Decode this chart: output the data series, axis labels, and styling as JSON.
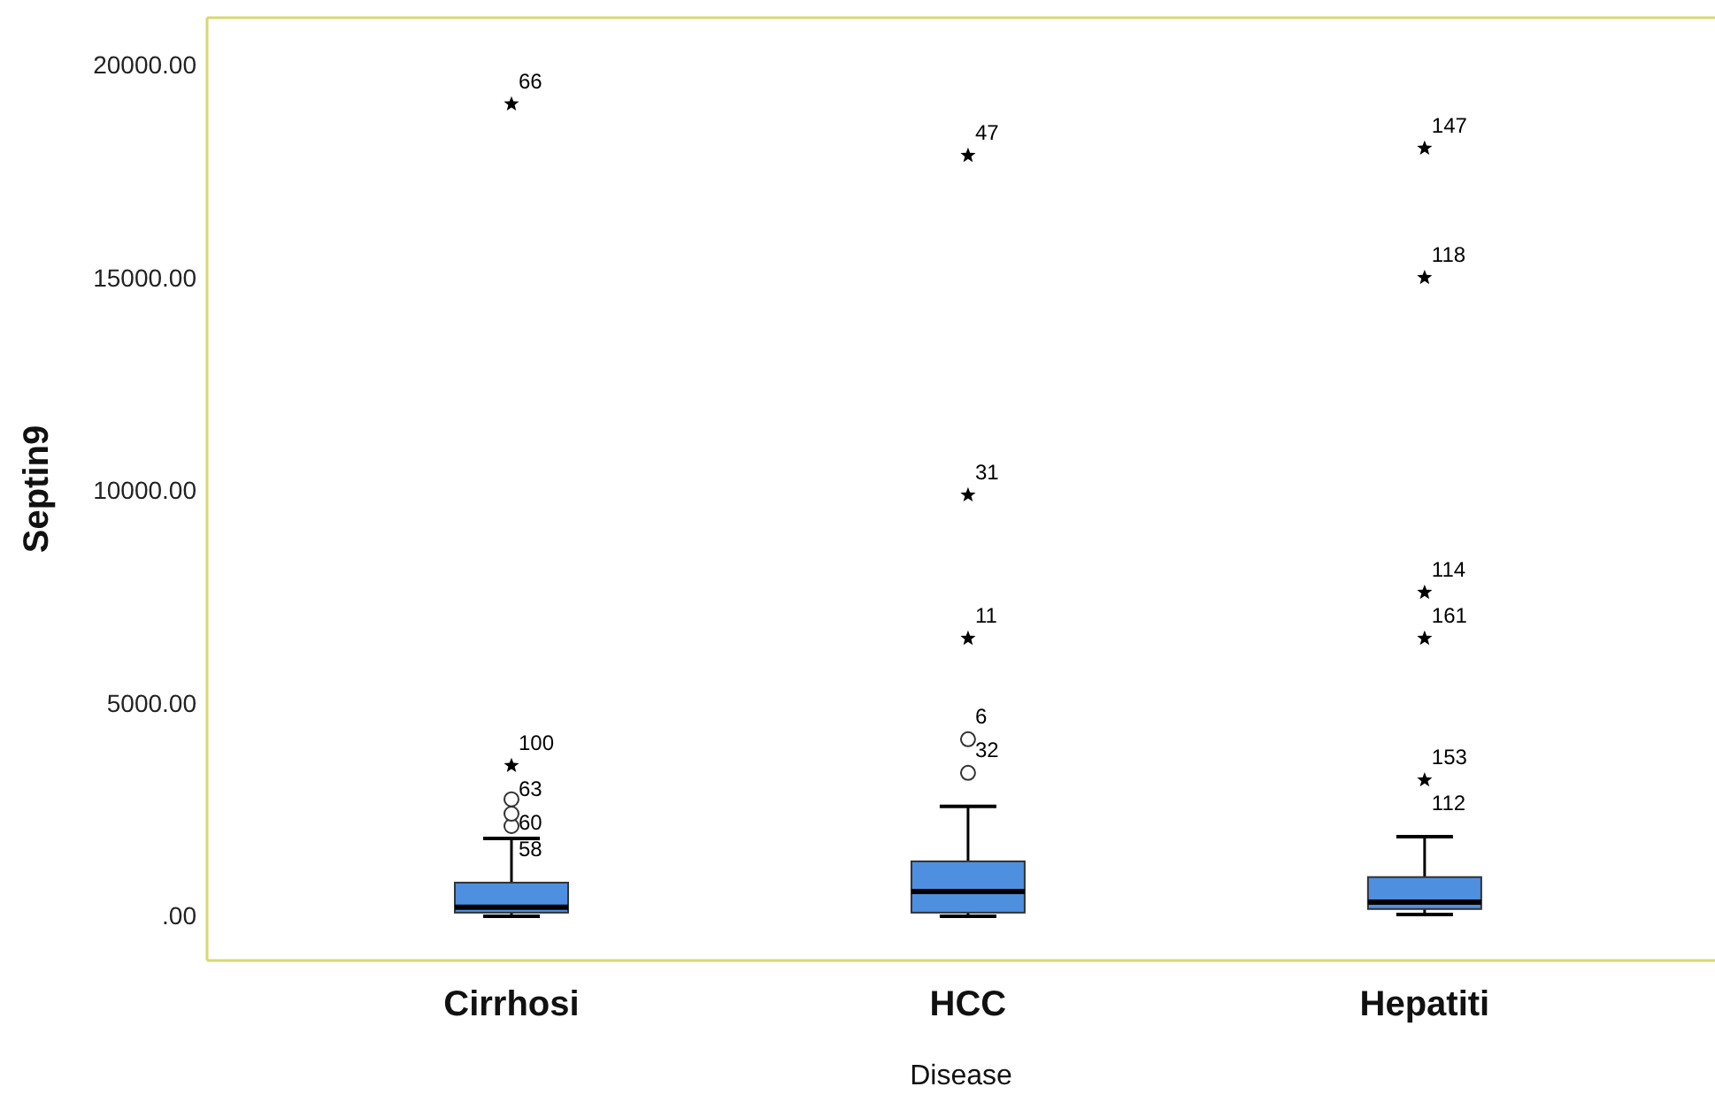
{
  "chart_data": {
    "type": "box",
    "xlabel": "Disease",
    "ylabel": "Septin9",
    "categories": [
      "Cirrhosi",
      "HCC",
      "Hepatiti"
    ],
    "color": "#4f8fe0",
    "boxes": [
      {
        "low": 40,
        "q1": 125,
        "median": 250,
        "q3": 830,
        "high": 1870
      },
      {
        "low": 40,
        "q1": 125,
        "median": 620,
        "q3": 1330,
        "high": 2620
      },
      {
        "low": 80,
        "q1": 210,
        "median": 370,
        "q3": 960,
        "high": 1910
      }
    ],
    "series": [
      {
        "type": "scatter",
        "marker": "circle",
        "color": "#333333",
        "x": [
          "Cirrhosi",
          "Cirrhosi",
          "Cirrhosi",
          "HCC",
          "HCC"
        ],
        "values": [
          2160,
          2450,
          2790,
          3410,
          4200
        ]
      },
      {
        "type": "scatter",
        "marker": "star",
        "color": "#000000",
        "x": [
          "Cirrhosi",
          "Cirrhosi",
          "HCC",
          "HCC",
          "HCC",
          "Hepatiti",
          "Hepatiti",
          "Hepatiti",
          "Hepatiti",
          "Hepatiti"
        ],
        "values": [
          19130,
          3580,
          6570,
          9940,
          17920,
          3240,
          6570,
          7650,
          15050,
          18090
        ]
      }
    ],
    "ylim": [
      -1000,
      21160
    ],
    "yticks": [
      {
        "value": 0,
        "label": ".00"
      },
      {
        "value": 5000,
        "label": "5000.00"
      },
      {
        "value": 10000,
        "label": "10000.00"
      },
      {
        "value": 15000,
        "label": "15000.00"
      },
      {
        "value": 20000,
        "label": "20000.00"
      }
    ],
    "grid": false,
    "annotations": [
      {
        "text": "66",
        "x": "Cirrhosi",
        "y": 19130
      },
      {
        "text": "100",
        "x": "Cirrhosi",
        "y": 3580
      },
      {
        "text": "63",
        "x": "Cirrhosi",
        "y": 3580
      },
      {
        "text": "60",
        "x": "Cirrhosi",
        "y": 2790
      },
      {
        "text": "58",
        "x": "Cirrhosi",
        "y": 2160
      },
      {
        "text": "47",
        "x": "HCC",
        "y": 17920
      },
      {
        "text": "31",
        "x": "HCC",
        "y": 9940
      },
      {
        "text": "11",
        "x": "HCC",
        "y": 6570
      },
      {
        "text": "6",
        "x": "HCC",
        "y": 4200
      },
      {
        "text": "32",
        "x": "HCC",
        "y": 3410
      },
      {
        "text": "147",
        "x": "Hepatiti",
        "y": 18090
      },
      {
        "text": "118",
        "x": "Hepatiti",
        "y": 15050
      },
      {
        "text": "114",
        "x": "Hepatiti",
        "y": 7650
      },
      {
        "text": "161",
        "x": "Hepatiti",
        "y": 6570
      },
      {
        "text": "153",
        "x": "Hepatiti",
        "y": 3240
      },
      {
        "text": "112",
        "x": "Hepatiti",
        "y": 3240
      }
    ]
  }
}
